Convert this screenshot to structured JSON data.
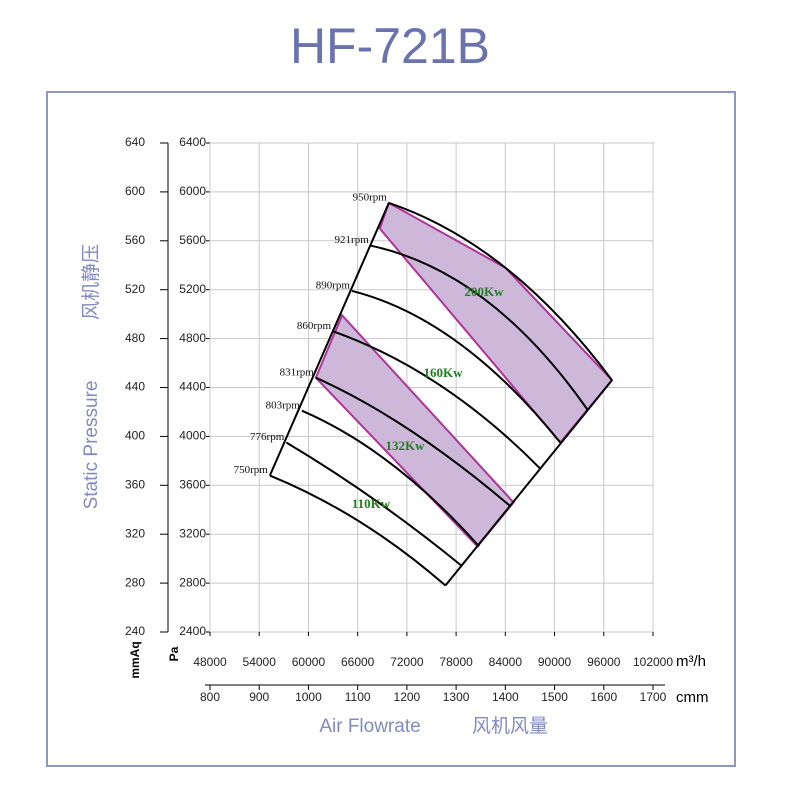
{
  "chart_data": {
    "type": "line",
    "title": "HF-721B",
    "xlabel": "Air Flowrate",
    "xlabel_cn": "风机风量",
    "ylabel": "Static Pressure",
    "ylabel_cn": "风机静压",
    "xunit": "m³/h",
    "x2unit": "cmm",
    "yunit": "Pa",
    "y2unit": "mmAq",
    "xlim": [
      48000,
      102000
    ],
    "xticks": [
      48000,
      54000,
      60000,
      66000,
      72000,
      78000,
      84000,
      90000,
      96000,
      102000
    ],
    "x2lim": [
      800,
      1700
    ],
    "x2ticks": [
      800,
      900,
      1000,
      1100,
      1200,
      1300,
      1400,
      1500,
      1600,
      1700
    ],
    "ylim": [
      2400,
      6400
    ],
    "yticks": [
      2400,
      2800,
      3200,
      3600,
      4000,
      4400,
      4800,
      5200,
      5600,
      6000,
      6400
    ],
    "y2lim": [
      240,
      640
    ],
    "y2ticks": [
      240,
      280,
      320,
      360,
      400,
      440,
      480,
      520,
      560,
      600,
      640
    ],
    "grid": true,
    "series": [
      {
        "name": "750rpm",
        "color": "#000000",
        "x": [
          55300,
          66300,
          76700
        ],
        "values": [
          3680,
          3300,
          2780
        ]
      },
      {
        "name": "776rpm",
        "color": "#000000",
        "x": [
          57300,
          68100,
          78700
        ],
        "values": [
          3950,
          3480,
          2940
        ]
      },
      {
        "name": "803rpm",
        "color": "#000000",
        "x": [
          59200,
          70200,
          80800
        ],
        "values": [
          4210,
          3770,
          3100
        ]
      },
      {
        "name": "831rpm",
        "color": "#000000",
        "x": [
          60900,
          72400,
          84600
        ],
        "values": [
          4480,
          4050,
          3430
        ]
      },
      {
        "name": "860rpm",
        "color": "#000000",
        "x": [
          63000,
          76000,
          88200
        ],
        "values": [
          4860,
          4420,
          3740
        ]
      },
      {
        "name": "890rpm",
        "color": "#000000",
        "x": [
          65300,
          78200,
          90700
        ],
        "values": [
          5190,
          4770,
          3950
        ]
      },
      {
        "name": "921rpm",
        "color": "#000000",
        "x": [
          67600,
          81500,
          94000
        ],
        "values": [
          5560,
          5120,
          4220
        ]
      },
      {
        "name": "950rpm",
        "color": "#000000",
        "x": [
          69800,
          84000,
          97000
        ],
        "values": [
          5910,
          5380,
          4460
        ]
      }
    ],
    "bands": [
      {
        "color": "#cdb8da",
        "edge_color": "#b0339a",
        "x": [
          60900,
          64100,
          85000,
          80600
        ],
        "values": [
          4480,
          4990,
          3460,
          3100
        ]
      },
      {
        "color": "#cdb8da",
        "edge_color": "#b0339a",
        "x": [
          68700,
          69800,
          84000,
          97000,
          90700
        ],
        "values": [
          5700,
          5910,
          5380,
          4460,
          3950
        ]
      }
    ],
    "power_labels": [
      "200Kw",
      "160Kw",
      "132Kw",
      "110Kw"
    ],
    "power_color": "#1f7f1f"
  }
}
